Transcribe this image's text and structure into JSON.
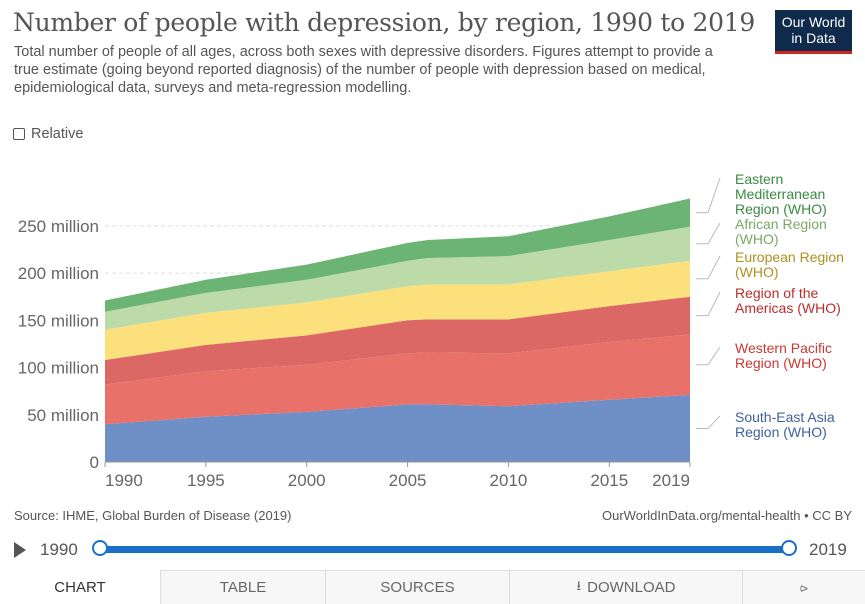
{
  "header": {
    "title": "Number of people with depression, by region, 1990 to 2019",
    "subtitle": "Total number of people of all ages, across both sexes with depressive disorders. Figures attempt to provide a true estimate (going beyond reported diagnosis) of the number of people with depression based on medical, epidemiological data, surveys and meta-regression modelling.",
    "logo_line1": "Our World",
    "logo_line2": "in Data"
  },
  "controls": {
    "relative_label": "Relative"
  },
  "chart_data": {
    "type": "area",
    "stacked": true,
    "x": [
      1990,
      1995,
      2000,
      2005,
      2006,
      2010,
      2015,
      2019
    ],
    "x_ticks": [
      "1990",
      "1995",
      "2000",
      "2005",
      "2010",
      "2015",
      "2019"
    ],
    "y_ticks": [
      "0",
      "50 million",
      "100 million",
      "150 million",
      "200 million",
      "250 million"
    ],
    "ylim": [
      0,
      280
    ],
    "y_unit": "million",
    "grid": "horizontal",
    "legend_placement": "right",
    "series": [
      {
        "name": "South-East Asia Region (WHO)",
        "color": "#6f8fc7",
        "label_color": "#3f5fa0",
        "values": [
          40,
          48,
          53,
          61,
          61,
          59,
          66,
          71
        ]
      },
      {
        "name": "Western Pacific Region (WHO)",
        "color": "#e8726a",
        "label_color": "#c93a34",
        "values": [
          42,
          48,
          50,
          54,
          55,
          56,
          61,
          64
        ]
      },
      {
        "name": "Region of the Americas (WHO)",
        "color": "#dc6866",
        "label_color": "#b92e2c",
        "values": [
          26,
          28,
          31,
          35,
          35,
          36,
          38,
          40
        ]
      },
      {
        "name": "European Region (WHO)",
        "color": "#fbe07c",
        "label_color": "#b09020",
        "values": [
          32,
          34,
          35,
          36,
          37,
          37,
          37,
          38
        ]
      },
      {
        "name": "African Region (WHO)",
        "color": "#bcdba8",
        "label_color": "#7aa866",
        "values": [
          19,
          21,
          24,
          27,
          28,
          30,
          33,
          36
        ]
      },
      {
        "name": "Eastern Mediterranean Region (WHO)",
        "color": "#6cb474",
        "label_color": "#3a8a44",
        "values": [
          12,
          14,
          16,
          19,
          19,
          21,
          25,
          30
        ]
      }
    ],
    "legend_lines": [
      [
        "Eastern",
        "Mediterranean",
        "Region (WHO)"
      ],
      [
        "African Region",
        "(WHO)"
      ],
      [
        "European Region",
        "(WHO)"
      ],
      [
        "Region of the",
        "Americas (WHO)"
      ],
      [
        "Western Pacific",
        "Region (WHO)"
      ],
      [
        "South-East Asia",
        "Region (WHO)"
      ]
    ]
  },
  "footer": {
    "source": "Source: IHME, Global Burden of Disease (2019)",
    "link": "OurWorldInData.org/mental-health • CC BY"
  },
  "timeline": {
    "start_label": "1990",
    "end_label": "2019"
  },
  "tabs": {
    "chart": "CHART",
    "table": "TABLE",
    "sources": "SOURCES",
    "download": "DOWNLOAD"
  }
}
